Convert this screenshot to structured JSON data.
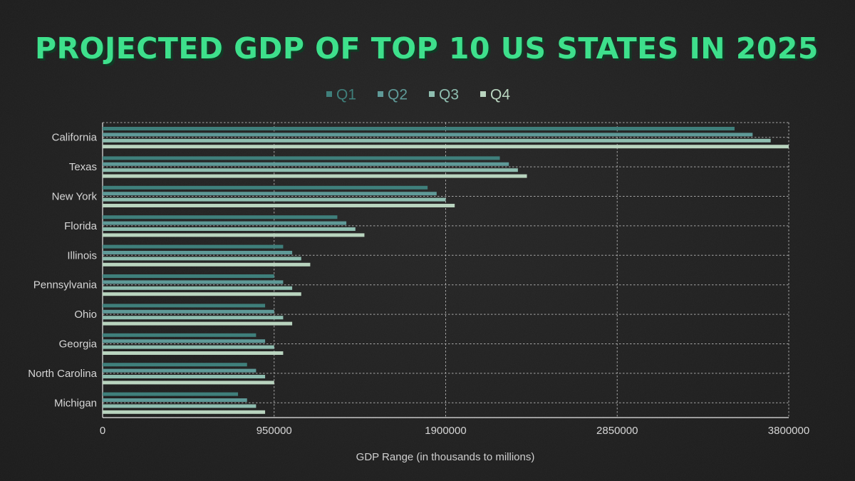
{
  "chart_data": {
    "type": "bar",
    "orientation": "horizontal",
    "title": "PROJECTED GDP OF TOP 10 US STATES IN 2025",
    "xlabel": "GDP Range (in thousands to millions)",
    "ylabel": "",
    "xlim": [
      0,
      3800000
    ],
    "xticks": [
      0,
      950000,
      1900000,
      2850000,
      3800000
    ],
    "xtick_labels": [
      "0",
      "950000",
      "1900000",
      "2850000",
      "3800000"
    ],
    "grid": true,
    "legend_position": "top-center",
    "categories": [
      "California",
      "Texas",
      "New York",
      "Florida",
      "Illinois",
      "Pennsylvania",
      "Ohio",
      "Georgia",
      "North Carolina",
      "Michigan"
    ],
    "series": [
      {
        "name": "Q1",
        "color": "#3f7f7b",
        "values": [
          3500000,
          2200000,
          1800000,
          1300000,
          1000000,
          950000,
          900000,
          850000,
          800000,
          750000
        ]
      },
      {
        "name": "Q2",
        "color": "#5f9a98",
        "values": [
          3600000,
          2250000,
          1850000,
          1350000,
          1050000,
          1000000,
          950000,
          900000,
          850000,
          800000
        ]
      },
      {
        "name": "Q3",
        "color": "#8fbeb0",
        "values": [
          3700000,
          2300000,
          1900000,
          1400000,
          1100000,
          1050000,
          1000000,
          950000,
          900000,
          850000
        ]
      },
      {
        "name": "Q4",
        "color": "#b9d4bf",
        "values": [
          3800000,
          2350000,
          1950000,
          1450000,
          1150000,
          1100000,
          1050000,
          1000000,
          950000,
          900000
        ]
      }
    ]
  },
  "colors": {
    "title": "#3ee08c",
    "title_shadow": "#0f3a24",
    "legend_text": "#4a8f8a",
    "grid": "#bdbdbd",
    "text": "#d6d6d6"
  }
}
